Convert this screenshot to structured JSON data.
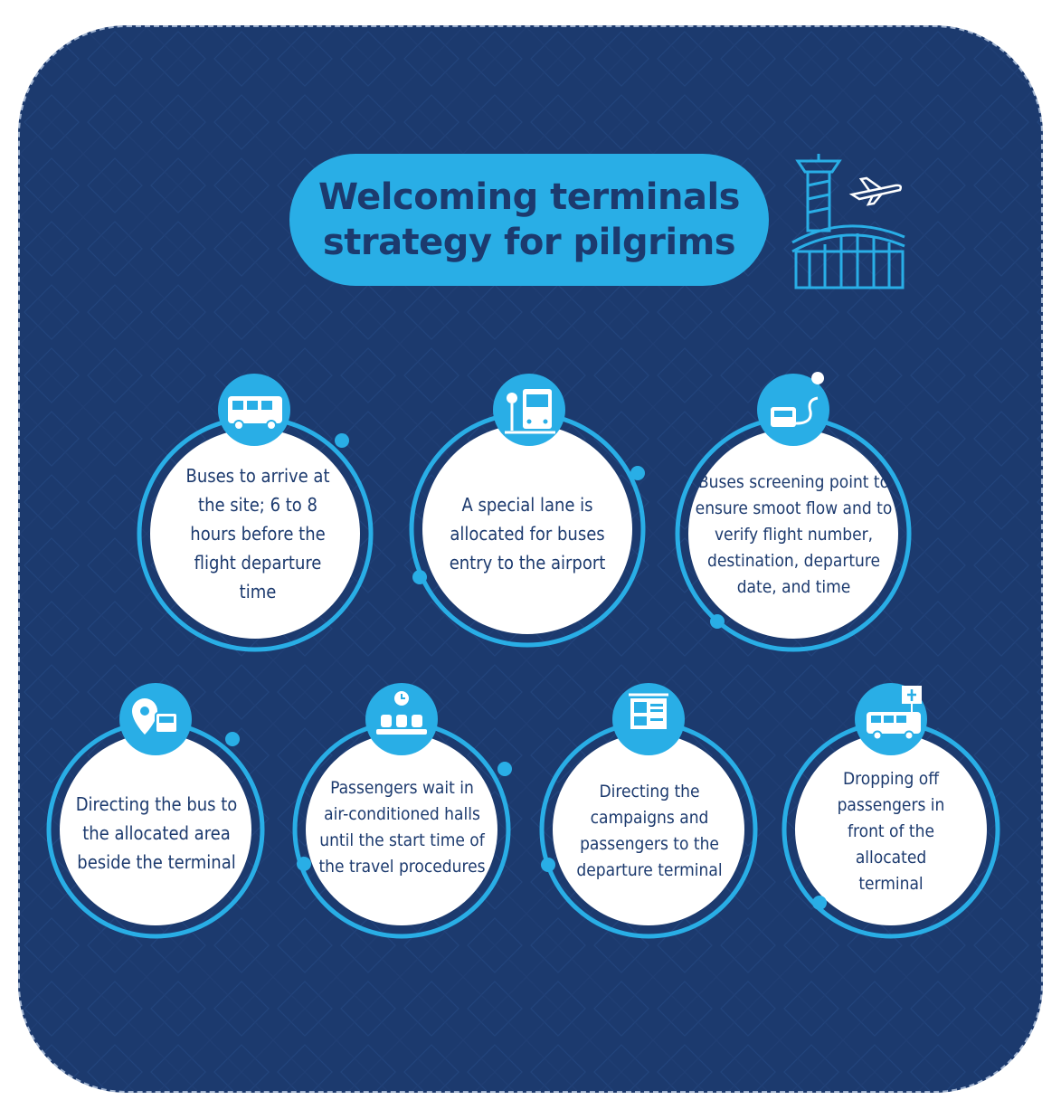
{
  "title": {
    "line1": "Welcoming terminals",
    "line2": "strategy for pilgrims"
  },
  "colors": {
    "background": "#1c3a6e",
    "accent": "#29aee6",
    "circle": "#ffffff",
    "text": "#1c3a6e"
  },
  "steps": [
    {
      "text": "Buses to arrive at the site; 6 to 8 hours before the flight departure time",
      "icon": "bus-icon"
    },
    {
      "text": "A special lane is allocated for buses entry to the airport",
      "icon": "bus-stop-icon"
    },
    {
      "text": "Buses screening point to ensure smoot flow and to verify flight number, destination, departure date, and time",
      "icon": "bus-route-icon"
    },
    {
      "text": "Directing the bus to the allocated area beside the terminal",
      "icon": "location-bus-icon"
    },
    {
      "text": "Passengers wait in air-conditioned halls until the start time of the travel procedures",
      "icon": "waiting-hall-icon"
    },
    {
      "text": "Directing the campaigns and passengers to the departure terminal",
      "icon": "departure-board-icon"
    },
    {
      "text": "Dropping off passengers in front of the allocated terminal",
      "icon": "van-dropoff-icon"
    }
  ]
}
